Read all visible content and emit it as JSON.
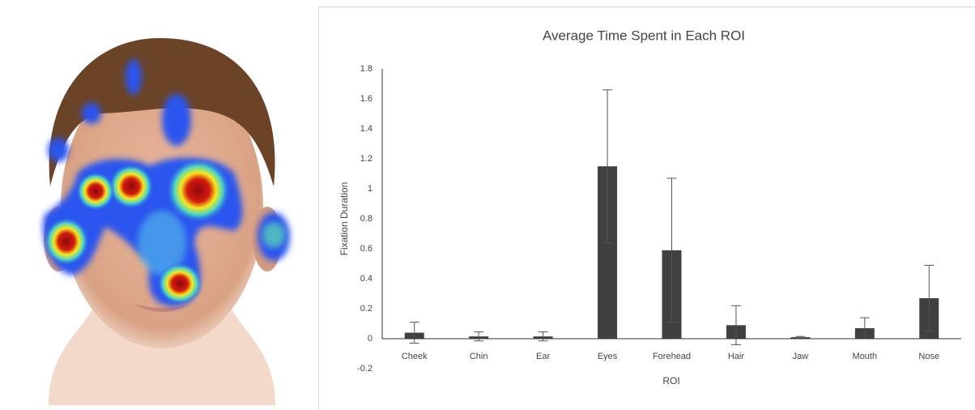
{
  "chart_data": {
    "type": "bar",
    "title": "Average Time Spent in Each ROI",
    "x_label": "ROI",
    "y_label": "Fixation Duration",
    "categories": [
      "Cheek",
      "Chin",
      "Ear",
      "Eyes",
      "Forehead",
      "Hair",
      "Jaw",
      "Mouth",
      "Nose"
    ],
    "values": [
      0.04,
      0.015,
      0.015,
      1.15,
      0.59,
      0.09,
      0.01,
      0.07,
      0.27
    ],
    "errors": [
      0.07,
      0.03,
      0.03,
      0.51,
      0.48,
      0.13,
      0.005,
      0.07,
      0.22
    ],
    "color": "#404040",
    "ylim": [
      -0.2,
      1.8
    ],
    "yticks": [
      -0.2,
      0,
      0.2,
      0.4,
      0.6,
      0.8,
      1,
      1.2,
      1.4,
      1.6,
      1.8
    ],
    "grid": false
  }
}
